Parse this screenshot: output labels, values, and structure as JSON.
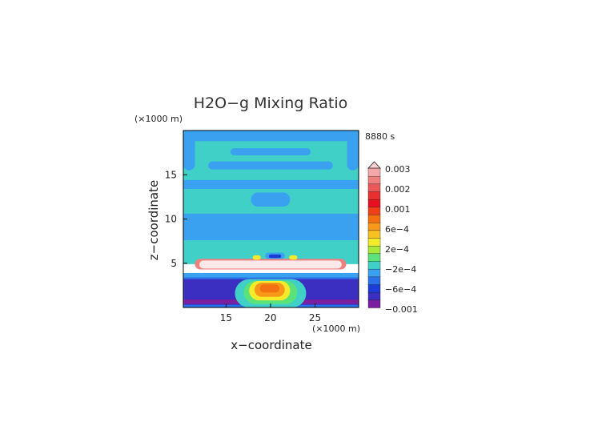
{
  "chart_data": {
    "type": "heatmap",
    "title": "H2O−g Mixing Ratio",
    "time_label": "8880 s",
    "xlabel": "x−coordinate",
    "ylabel": "z−coordinate",
    "x_unit": "(×1000 m)",
    "y_unit": "(×1000 m)",
    "x_ticks": [
      {
        "value": 15,
        "label": "15"
      },
      {
        "value": 20,
        "label": "20"
      },
      {
        "value": 25,
        "label": "25"
      }
    ],
    "y_ticks": [
      {
        "value": 5,
        "label": "5"
      },
      {
        "value": 10,
        "label": "10"
      },
      {
        "value": 15,
        "label": "15"
      }
    ],
    "xlim": [
      10.2,
      29.9
    ],
    "ylim": [
      0,
      20
    ],
    "colorbar": {
      "labels": [
        "0.003",
        "0.002",
        "0.001",
        "6e−4",
        "2e−4",
        "−2e−4",
        "−6e−4",
        "−0.001"
      ],
      "colors": [
        "#7b1fa0",
        "#3a2fc0",
        "#1c3cd8",
        "#2a70e8",
        "#3aa0f0",
        "#40d0c8",
        "#5ce27a",
        "#a8e83a",
        "#f4ec2a",
        "#f8c020",
        "#f89818",
        "#f47010",
        "#f04018",
        "#e81020",
        "#e83030",
        "#ea5858",
        "#f08080",
        "#f4a8a8"
      ]
    },
    "regions": [
      {
        "x0": 10.2,
        "x1": 29.9,
        "y0": 0,
        "y1": 20,
        "color": "#40d0c8"
      },
      {
        "x0": 10.2,
        "x1": 29.9,
        "y0": 18.8,
        "y1": 20,
        "color": "#3aa0f0"
      },
      {
        "x0": 10.2,
        "x1": 11.5,
        "y0": 15.5,
        "y1": 20,
        "color": "#3aa0f0"
      },
      {
        "x0": 28.6,
        "x1": 29.9,
        "y0": 15.5,
        "y1": 20,
        "color": "#3aa0f0"
      },
      {
        "x0": 15.5,
        "x1": 24.5,
        "y0": 17.2,
        "y1": 18.0,
        "color": "#3aa0f0"
      },
      {
        "x0": 13.0,
        "x1": 27.0,
        "y0": 15.6,
        "y1": 16.5,
        "color": "#3aa0f0"
      },
      {
        "x0": 10.2,
        "x1": 29.9,
        "y0": 13.4,
        "y1": 14.4,
        "color": "#3aa0f0"
      },
      {
        "x0": 17.8,
        "x1": 22.2,
        "y0": 11.4,
        "y1": 13.0,
        "color": "#3aa0f0"
      },
      {
        "x0": 10.2,
        "x1": 29.9,
        "y0": 7.6,
        "y1": 10.6,
        "color": "#3aa0f0"
      },
      {
        "x0": 10.2,
        "x1": 29.9,
        "y0": 3.4,
        "y1": 4.8,
        "color": "#3aa0f0"
      },
      {
        "x0": 10.2,
        "x1": 29.9,
        "y0": 0,
        "y1": 3.4,
        "color": "#2a70e8"
      },
      {
        "x0": 10.2,
        "x1": 29.9,
        "y0": 0.3,
        "y1": 3.2,
        "color": "#3a2fc0"
      },
      {
        "x0": 10.2,
        "x1": 29.9,
        "y0": 0.4,
        "y1": 0.9,
        "color": "#7b1fa0"
      },
      {
        "x0": 16.0,
        "x1": 24.0,
        "y0": 0,
        "y1": 3.2,
        "color": "#40d0c8"
      },
      {
        "x0": 17.0,
        "x1": 23.0,
        "y0": 0.4,
        "y1": 3.0,
        "color": "#5ce27a"
      },
      {
        "x0": 17.6,
        "x1": 22.2,
        "y0": 0.8,
        "y1": 3.0,
        "color": "#f4ec2a"
      },
      {
        "x0": 18.2,
        "x1": 21.6,
        "y0": 1.2,
        "y1": 2.8,
        "color": "#f89818"
      },
      {
        "x0": 18.8,
        "x1": 21.0,
        "y0": 1.7,
        "y1": 2.6,
        "color": "#f47010"
      },
      {
        "x0": 10.2,
        "x1": 29.9,
        "y0": 3.9,
        "y1": 4.9,
        "color": "#ffffff"
      },
      {
        "x0": 11.5,
        "x1": 28.5,
        "y0": 4.3,
        "y1": 5.5,
        "color": "#f08080"
      },
      {
        "x0": 12.0,
        "x1": 28.0,
        "y0": 4.4,
        "y1": 5.3,
        "color": "#fbe8e8"
      },
      {
        "x0": 19.4,
        "x1": 21.6,
        "y0": 5.5,
        "y1": 6.2,
        "color": "#3aa0f0"
      },
      {
        "x0": 19.8,
        "x1": 21.2,
        "y0": 5.6,
        "y1": 6.0,
        "color": "#1c3cd8"
      },
      {
        "x0": 18.0,
        "x1": 18.9,
        "y0": 5.4,
        "y1": 5.9,
        "color": "#f4ec2a"
      },
      {
        "x0": 22.1,
        "x1": 23.0,
        "y0": 5.4,
        "y1": 5.9,
        "color": "#f4ec2a"
      }
    ]
  }
}
